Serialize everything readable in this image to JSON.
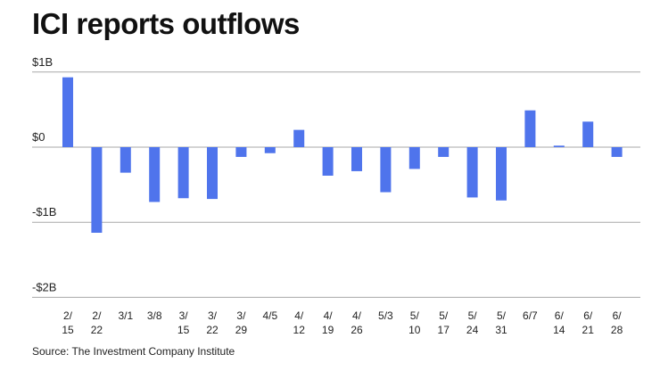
{
  "chart_data": {
    "type": "bar",
    "title": "ICI reports outflows",
    "source": "Source: The Investment Company Institute",
    "xlabel": "",
    "ylabel": "",
    "ylim": [
      -2,
      1
    ],
    "yticks": [
      1,
      0,
      -1,
      -2
    ],
    "ytick_labels": [
      "$1B",
      "$0",
      "-$1B",
      "-$2B"
    ],
    "grid": true,
    "categories": [
      "2/15",
      "2/22",
      "3/1",
      "3/8",
      "3/15",
      "3/22",
      "3/29",
      "4/5",
      "4/12",
      "4/19",
      "4/26",
      "5/3",
      "5/10",
      "5/17",
      "5/24",
      "5/31",
      "6/7",
      "6/14",
      "6/21",
      "6/28"
    ],
    "tick_lines": [
      [
        "2/",
        "15"
      ],
      [
        "2/",
        "22"
      ],
      [
        "3/1",
        ""
      ],
      [
        "3/8",
        ""
      ],
      [
        "3/",
        "15"
      ],
      [
        "3/",
        "22"
      ],
      [
        "3/",
        "29"
      ],
      [
        "4/5",
        ""
      ],
      [
        "4/",
        "12"
      ],
      [
        "4/",
        "19"
      ],
      [
        "4/",
        "26"
      ],
      [
        "5/3",
        ""
      ],
      [
        "5/",
        "10"
      ],
      [
        "5/",
        "17"
      ],
      [
        "5/",
        "24"
      ],
      [
        "5/",
        "31"
      ],
      [
        "6/7",
        ""
      ],
      [
        "6/",
        "14"
      ],
      [
        "6/",
        "21"
      ],
      [
        "6/",
        "28"
      ]
    ],
    "values": [
      0.93,
      -1.14,
      -0.34,
      -0.73,
      -0.68,
      -0.69,
      -0.13,
      -0.08,
      0.23,
      -0.38,
      -0.32,
      -0.6,
      -0.29,
      -0.13,
      -0.67,
      -0.71,
      0.49,
      0.02,
      0.34,
      -0.13
    ],
    "unit": "billions USD",
    "bar_color": "#4f74ec",
    "grid_color": "#a8a8a8"
  }
}
